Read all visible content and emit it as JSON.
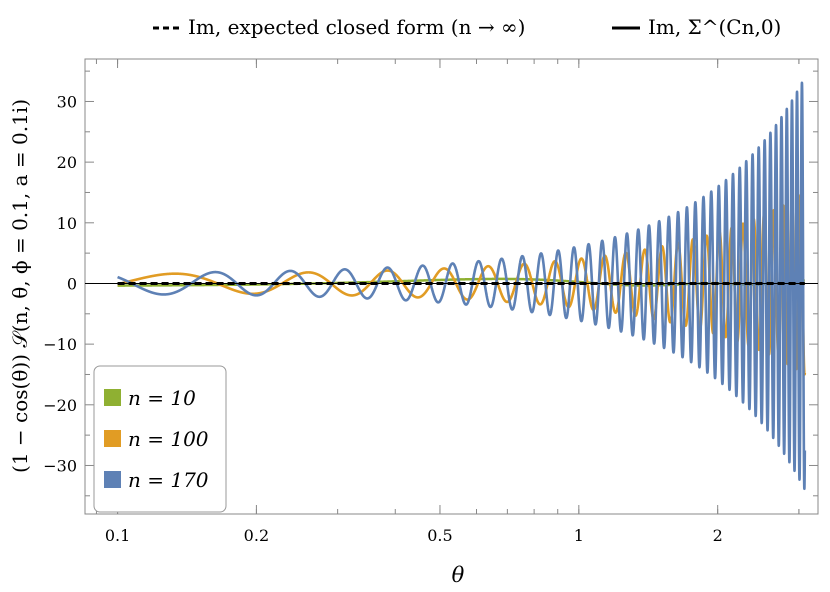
{
  "chart_data": {
    "type": "line",
    "xlabel": "θ",
    "ylabel": "(1 − cos(θ)) 𝒮(n, θ, ϕ = 0.1, a = 0.1i)",
    "x_scale": "log",
    "xlim": [
      0.085,
      3.3
    ],
    "ylim": [
      -38,
      37
    ],
    "x_ticks": [
      0.1,
      0.2,
      0.5,
      1,
      2
    ],
    "x_tick_labels": [
      "0.1",
      "0.2",
      "0.5",
      "1",
      "2"
    ],
    "y_ticks": [
      -30,
      -20,
      -10,
      0,
      10,
      20,
      30
    ],
    "y_tick_labels": [
      "−30",
      "−20",
      "−10",
      "0",
      "10",
      "20",
      "30"
    ],
    "top_legend": [
      {
        "style": "dashed",
        "label": "Im, expected closed form (n → ∞)"
      },
      {
        "style": "solid",
        "label": "Im, Σ^(Cn,0)"
      }
    ],
    "legend": {
      "position": "bottom-left"
    },
    "series": [
      {
        "name": "n = 10",
        "color": "#8fb032",
        "x_range": [
          0.1,
          3.09
        ],
        "amplitude_start": 0.3,
        "amplitude_end": 0.5
      },
      {
        "name": "n = 100",
        "color": "#e19c24",
        "x_range": [
          0.1,
          3.09
        ],
        "amplitude_start": 1.6,
        "amplitude_end": 15.0
      },
      {
        "name": "n = 170",
        "color": "#5e81b5",
        "x_range": [
          0.1,
          3.09
        ],
        "amplitude_start": 1.8,
        "amplitude_end": 34.0
      }
    ],
    "expected_closed_form": {
      "style": "dashed",
      "color": "#000000",
      "value": 0
    }
  }
}
